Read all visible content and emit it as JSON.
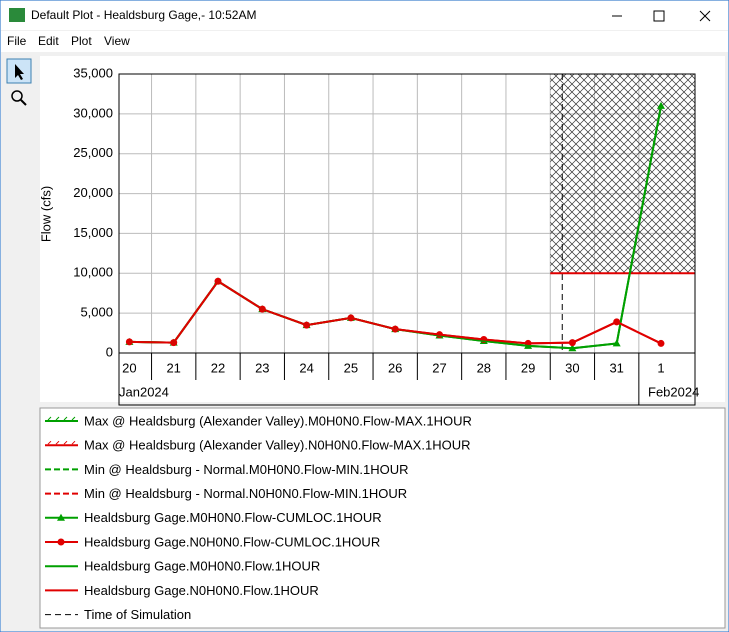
{
  "window": {
    "title": "Default Plot - Healdsburg Gage,- 10:52AM",
    "menu": [
      "File",
      "Edit",
      "Plot",
      "View"
    ]
  },
  "chart_data": {
    "type": "line",
    "ylabel": "Flow (cfs)",
    "x": [
      "2024-01-20",
      "2024-01-21",
      "2024-01-22",
      "2024-01-23",
      "2024-01-24",
      "2024-01-25",
      "2024-01-26",
      "2024-01-27",
      "2024-01-28",
      "2024-01-29",
      "2024-01-30",
      "2024-01-31",
      "2024-02-01"
    ],
    "x_labels": [
      "20",
      "21",
      "22",
      "23",
      "24",
      "25",
      "26",
      "27",
      "28",
      "29",
      "30",
      "31",
      "1"
    ],
    "months": [
      "Jan2024",
      "Feb2024"
    ],
    "ylim": [
      0,
      35000
    ],
    "yticks": [
      0,
      {
        "value": 5000,
        "label": "5,000"
      },
      {
        "value": 10000,
        "label": "10,000"
      },
      {
        "value": 15000,
        "label": "15,000"
      },
      {
        "value": 20000,
        "label": "20,000"
      },
      {
        "value": 25000,
        "label": "25,000"
      },
      {
        "value": 30000,
        "label": "30,000"
      },
      {
        "value": 35000,
        "label": "35,000"
      }
    ],
    "grid": true,
    "simulation_date": "2024-01-30",
    "series": [
      {
        "name": "Max @ Healdsburg (Alexander Valley).M0H0N0.Flow-MAX.1HOUR",
        "color": "#00a000",
        "style": "hatched",
        "values": [
          null,
          null,
          null,
          null,
          null,
          null,
          null,
          null,
          null,
          null,
          null,
          null,
          null
        ]
      },
      {
        "name": "Max @ Healdsburg (Alexander Valley).N0H0N0.Flow-MAX.1HOUR",
        "color": "#e00000",
        "style": "hatched",
        "values": [
          null,
          null,
          null,
          null,
          null,
          null,
          null,
          null,
          null,
          null,
          10000,
          10000,
          10000
        ]
      },
      {
        "name": "Min @ Healdsburg - Normal.M0H0N0.Flow-MIN.1HOUR",
        "color": "#00a000",
        "style": "dashed",
        "values": [
          null,
          null,
          null,
          null,
          null,
          null,
          null,
          null,
          null,
          null,
          null,
          null,
          null
        ]
      },
      {
        "name": "Min @ Healdsburg - Normal.N0H0N0.Flow-MIN.1HOUR",
        "color": "#e00000",
        "style": "dashed",
        "values": [
          null,
          null,
          null,
          null,
          null,
          null,
          null,
          null,
          null,
          null,
          null,
          null,
          null
        ]
      },
      {
        "name": "Healdsburg Gage.M0H0N0.Flow-CUMLOC.1HOUR",
        "color": "#00a000",
        "style": "solid",
        "marker": "triangle",
        "values": [
          1400,
          1300,
          9000,
          5500,
          3500,
          4400,
          3000,
          2200,
          1500,
          900,
          600,
          1200,
          31000
        ]
      },
      {
        "name": "Healdsburg Gage.N0H0N0.Flow-CUMLOC.1HOUR",
        "color": "#e00000",
        "style": "solid",
        "marker": "circle",
        "values": [
          1400,
          1300,
          9000,
          5500,
          3500,
          4400,
          3000,
          2300,
          1700,
          1200,
          1300,
          3900,
          1200
        ]
      },
      {
        "name": "Healdsburg Gage.M0H0N0.Flow.1HOUR",
        "color": "#00a000",
        "style": "solid",
        "values": [
          1400,
          1300,
          9000,
          5500,
          3500,
          4400,
          3000,
          2200,
          1500,
          900,
          600,
          1200,
          31000
        ]
      },
      {
        "name": "Healdsburg Gage.N0H0N0.Flow.1HOUR",
        "color": "#e00000",
        "style": "solid",
        "values": [
          1400,
          1300,
          9000,
          5500,
          3500,
          4400,
          3000,
          2300,
          1700,
          1200,
          1300,
          3900,
          1200
        ]
      }
    ],
    "simulation_label": "Time of Simulation"
  }
}
